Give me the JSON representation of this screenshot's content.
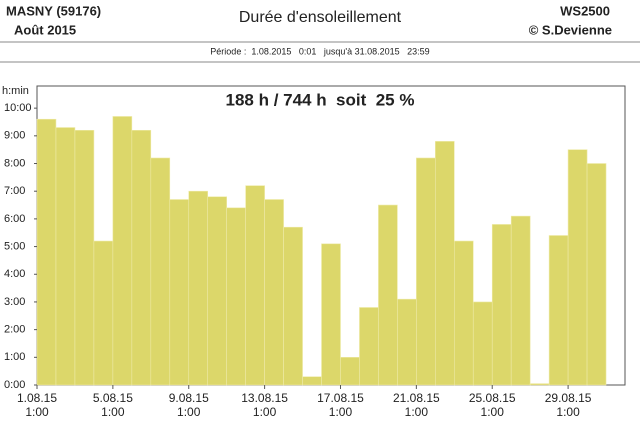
{
  "header": {
    "station": "MASNY (59176)",
    "month": "Août  2015",
    "title": "Durée d'ensoleillement",
    "device": "WS2500",
    "author": "© S.Devienne",
    "period": "Période :  1.08.2015   0:01   jusqu'à 31.08.2015   23:59"
  },
  "chart_data": {
    "type": "bar",
    "annotation": "188 h / 744 h  soit  25 %",
    "y_label": "h:min",
    "categories": [
      "1.08.15\n1:00",
      null,
      null,
      null,
      "5.08.15\n1:00",
      null,
      null,
      null,
      "9.08.15\n1:00",
      null,
      null,
      null,
      "13.08.15\n1:00",
      null,
      null,
      null,
      "17.08.15\n1:00",
      null,
      null,
      null,
      "21.08.15\n1:00",
      null,
      null,
      null,
      "25.08.15\n1:00",
      null,
      null,
      null,
      "29.08.15\n1:00",
      null,
      null
    ],
    "values": [
      9.6,
      9.3,
      9.2,
      5.2,
      9.7,
      9.2,
      8.2,
      6.7,
      7.0,
      6.8,
      6.4,
      7.2,
      6.7,
      5.7,
      0.3,
      5.1,
      1.0,
      2.8,
      6.5,
      3.1,
      8.2,
      8.8,
      5.2,
      3.0,
      5.8,
      6.1,
      0.05,
      5.4,
      8.5,
      8.0,
      null
    ],
    "color": "#dcd76a",
    "ylim": [
      0,
      10.8
    ],
    "yticks": [
      {
        "value": 0,
        "label": "0:00"
      },
      {
        "value": 1,
        "label": "1:00"
      },
      {
        "value": 2,
        "label": "2:00"
      },
      {
        "value": 3,
        "label": "3:00"
      },
      {
        "value": 4,
        "label": "4:00"
      },
      {
        "value": 5,
        "label": "5:00"
      },
      {
        "value": 6,
        "label": "6:00"
      },
      {
        "value": 7,
        "label": "7:00"
      },
      {
        "value": 8,
        "label": "8:00"
      },
      {
        "value": 9,
        "label": "9:00"
      },
      {
        "value": 10,
        "label": "10:00"
      }
    ]
  }
}
